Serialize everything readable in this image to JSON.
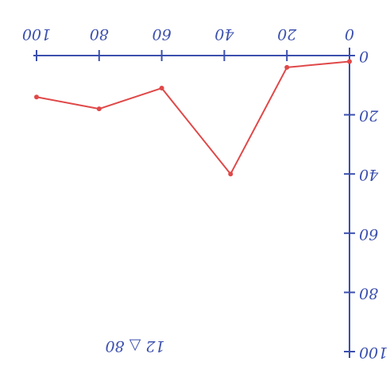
{
  "chart_data": {
    "type": "line",
    "annotation": "12 △ 80",
    "x": [
      0,
      20,
      38,
      60,
      80,
      100
    ],
    "series": [
      {
        "color": "#e04848",
        "values": [
          2,
          4,
          40,
          11,
          18,
          14
        ]
      }
    ],
    "xlim": [
      0,
      100
    ],
    "xticks": [
      0,
      20,
      40,
      60,
      80,
      100
    ],
    "ylim": [
      0,
      100
    ],
    "yticks": [
      0,
      20,
      40,
      60,
      80,
      100
    ],
    "axis_color": "#3b4fae",
    "grid": false
  }
}
